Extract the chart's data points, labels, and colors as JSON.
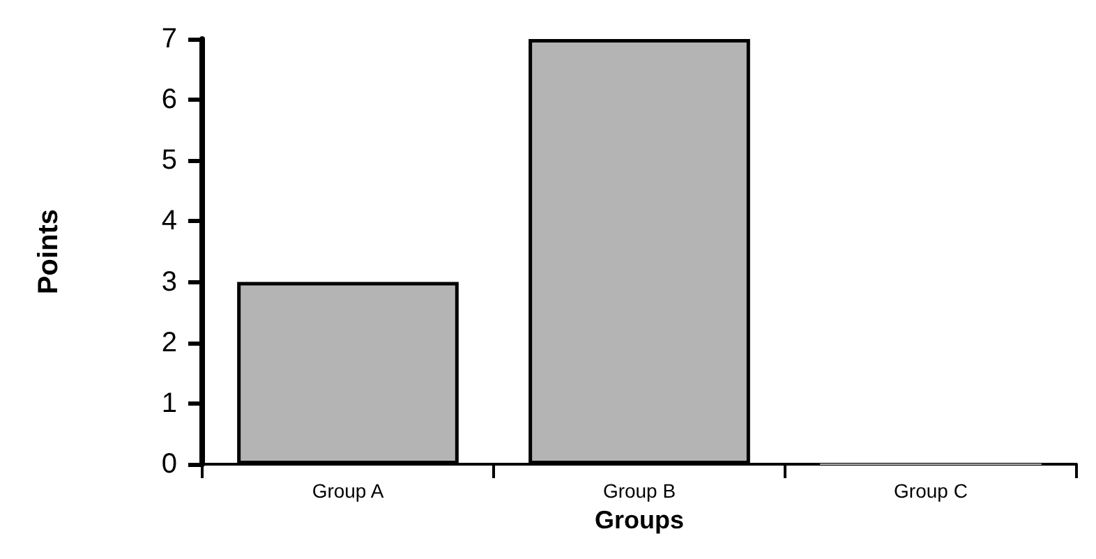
{
  "chart_data": {
    "type": "bar",
    "xlabel": "Groups",
    "ylabel": "Points",
    "categories": [
      "Group A",
      "Group B",
      "Group C"
    ],
    "values": [
      3,
      7,
      0
    ],
    "color": "#b4b4b4",
    "ylim": [
      0,
      7
    ],
    "yticks": [
      0,
      1,
      2,
      3,
      4,
      5,
      6,
      7
    ],
    "grid": false
  }
}
